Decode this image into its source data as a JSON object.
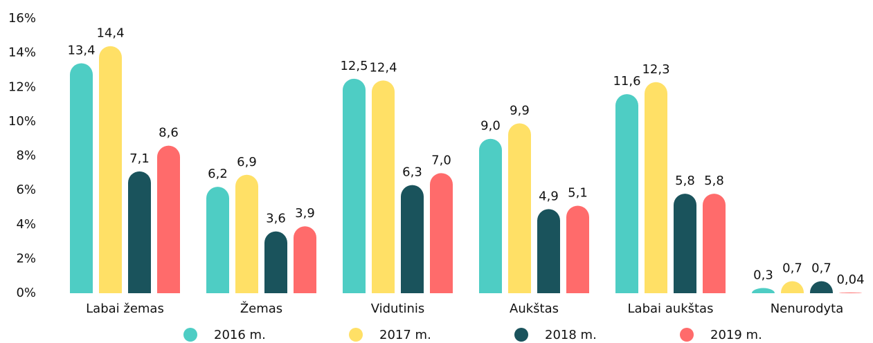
{
  "chart_data": {
    "type": "bar",
    "categories": [
      "Labai žemas",
      "Žemas",
      "Vidutinis",
      "Aukštas",
      "Labai aukštas",
      "Nenurodyta"
    ],
    "series": [
      {
        "name": "2016 m.",
        "color": "#4ecdc4",
        "values": [
          13.4,
          6.2,
          12.5,
          9.0,
          11.6,
          0.3
        ],
        "value_labels": [
          "13,4",
          "6,2",
          "12,5",
          "9,0",
          "11,6",
          "0,3"
        ]
      },
      {
        "name": "2017 m.",
        "color": "#ffe066",
        "values": [
          14.4,
          6.9,
          12.4,
          9.9,
          12.3,
          0.7
        ],
        "value_labels": [
          "14,4",
          "6,9",
          "12,4",
          "9,9",
          "12,3",
          "0,7"
        ]
      },
      {
        "name": "2018 m.",
        "color": "#1a535c",
        "values": [
          7.1,
          3.6,
          6.3,
          4.9,
          5.8,
          0.7
        ],
        "value_labels": [
          "7,1",
          "3,6",
          "6,3",
          "4,9",
          "5,8",
          "0,7"
        ]
      },
      {
        "name": "2019 m.",
        "color": "#ff6b6b",
        "values": [
          8.6,
          3.9,
          7.0,
          5.1,
          5.8,
          0.04
        ],
        "value_labels": [
          "8,6",
          "3,9",
          "7,0",
          "5,1",
          "5,8",
          "0,04"
        ]
      }
    ],
    "ylim": [
      0,
      16
    ],
    "yticks": [
      {
        "value": 0,
        "label": "0%"
      },
      {
        "value": 2,
        "label": "2%"
      },
      {
        "value": 4,
        "label": "4%"
      },
      {
        "value": 6,
        "label": "6%"
      },
      {
        "value": 8,
        "label": "8%"
      },
      {
        "value": 10,
        "label": "10%"
      },
      {
        "value": 12,
        "label": "12%"
      },
      {
        "value": 14,
        "label": "14%"
      },
      {
        "value": 16,
        "label": "16%"
      }
    ],
    "legend": "bottom"
  }
}
